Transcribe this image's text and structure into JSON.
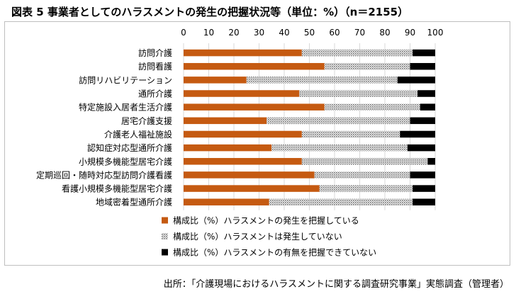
{
  "title": "図表 5 事業者としてのハラスメントの発生の把握状況等（単位：%）（n＝2155）",
  "source": "出所：「介護現場におけるハラスメントに関する調査研究事業」実態調査（管理者）",
  "colors": {
    "occurred": "#c55a11",
    "not_occurred": "#bdbdbd",
    "unknown": "#000000",
    "grid": "#d9d9d9"
  },
  "chart_data": {
    "type": "bar",
    "stacked": true,
    "orientation": "horizontal",
    "xlim": [
      0,
      100
    ],
    "xticks": [
      0,
      10,
      20,
      30,
      40,
      50,
      60,
      70,
      80,
      90,
      100
    ],
    "grid": true,
    "legend_position": "bottom",
    "categories": [
      "訪問介護",
      "訪問看護",
      "訪問リハビリテーション",
      "通所介護",
      "特定施設入居者生活介護",
      "居宅介護支援",
      "介護老人福祉施設",
      "認知症対応型通所介護",
      "小規模多機能型居宅介護",
      "定期巡回・随時対応型訪問介護看護",
      "看護小規模多機能型居宅介護",
      "地域密着型通所介護"
    ],
    "series": [
      {
        "name": "構成比（%）ハラスメントの発生を把握している",
        "values": [
          47,
          56,
          25,
          46,
          56,
          33,
          47,
          35,
          47,
          52,
          54,
          34
        ]
      },
      {
        "name": "構成比（%）ハラスメントは発生していない",
        "values": [
          44,
          34,
          60,
          47,
          38,
          57,
          39,
          54,
          50,
          38,
          37,
          57
        ]
      },
      {
        "name": "構成比（%）ハラスメントの有無を把握できていない",
        "values": [
          9,
          10,
          15,
          7,
          6,
          10,
          14,
          11,
          3,
          10,
          9,
          9
        ]
      }
    ]
  }
}
